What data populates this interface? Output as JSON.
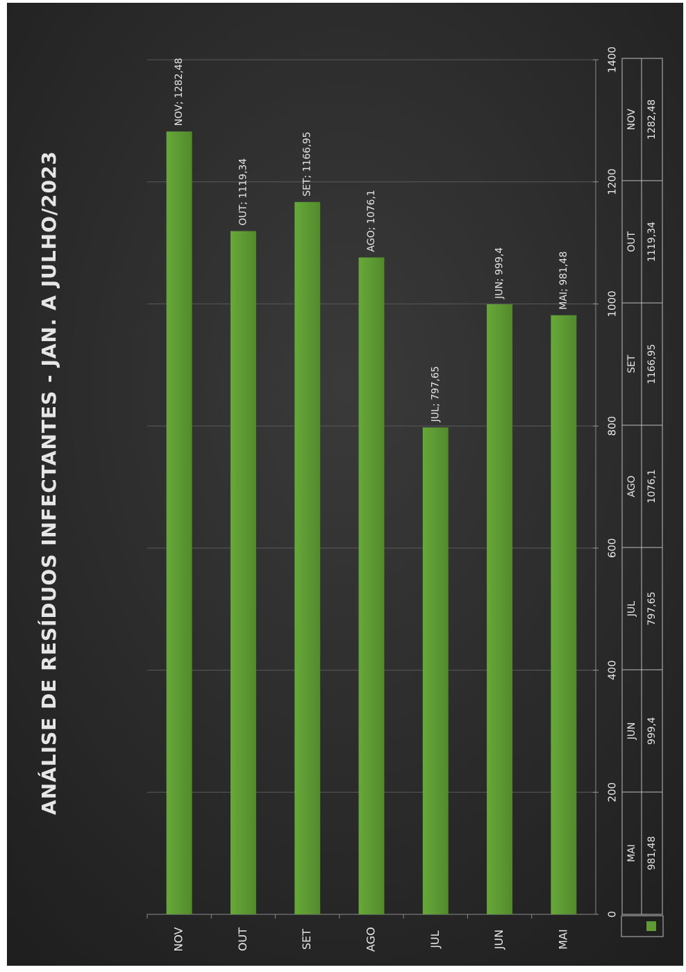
{
  "chart_data": {
    "type": "bar",
    "orientation": "vertical-rotated",
    "title": "ANÁLISE DE RESÍDUOS INFECTANTES - JAN. A JULHO/2023",
    "categories": [
      "NOV",
      "OUT",
      "SET",
      "AGO",
      "JUL",
      "JUN",
      "MAI"
    ],
    "data_labels": [
      "NOV; 1282,48",
      "OUT; 1119,34",
      "SET; 1166,95",
      "AGO; 1076,1",
      "JUL; 797,65",
      "JUN; 999,4",
      "MAI; 981,48"
    ],
    "series": [
      {
        "values": [
          1282.48,
          1119.34,
          1166.95,
          1076.1,
          797.65,
          999.4,
          981.48
        ]
      }
    ],
    "ylim": [
      0,
      1400
    ],
    "y_ticks": [
      "0",
      "200",
      "400",
      "600",
      "800",
      "1000",
      "1200",
      "1400"
    ],
    "grid": true,
    "colors": {
      "bar": "#5f9a34",
      "background": "#2b2b2b",
      "text": "#e6e6e6",
      "grid": "#5a5a5a"
    },
    "data_table": {
      "columns": [
        "MAI",
        "JUN",
        "JUL",
        "AGO",
        "SET",
        "OUT",
        "NOV"
      ],
      "values": [
        "981,48",
        "999,4",
        "797,65",
        "1076,1",
        "1166,95",
        "1119,34",
        "1282,48"
      ]
    }
  }
}
